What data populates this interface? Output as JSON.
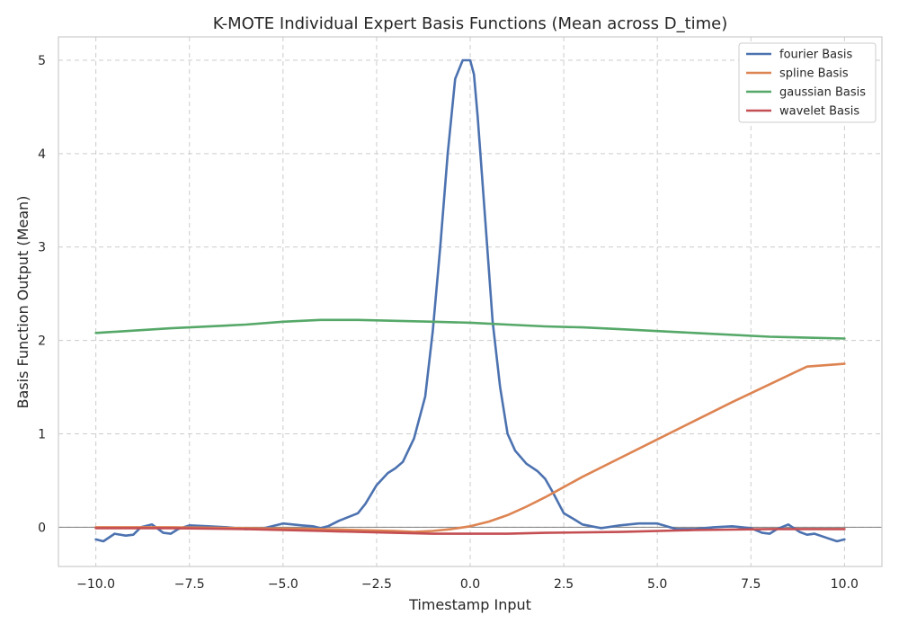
{
  "chart_data": {
    "type": "line",
    "title": "K-MOTE Individual Expert Basis Functions (Mean across D_time)",
    "xlabel": "Timestamp Input",
    "ylabel": "Basis Function Output (Mean)",
    "xlim": [
      -11,
      11
    ],
    "ylim": [
      -0.42,
      5.25
    ],
    "xticks": [
      -10,
      -7.5,
      -5,
      -2.5,
      0,
      2.5,
      5,
      7.5,
      10
    ],
    "xtick_labels": [
      "−10.0",
      "−7.5",
      "−5.0",
      "−2.5",
      "0.0",
      "2.5",
      "5.0",
      "7.5",
      "10.0"
    ],
    "yticks": [
      0,
      1,
      2,
      3,
      4,
      5
    ],
    "ytick_labels": [
      "0",
      "1",
      "2",
      "3",
      "4",
      "5"
    ],
    "grid": true,
    "reference_line_y": 0,
    "legend_position": "top-right",
    "series": [
      {
        "name": "fourier Basis",
        "color": "#4c72b0",
        "x": [
          -10,
          -9.8,
          -9.5,
          -9.2,
          -9,
          -8.8,
          -8.5,
          -8.2,
          -8,
          -7.8,
          -7.5,
          -7,
          -6.5,
          -6,
          -5.5,
          -5,
          -4.5,
          -4.2,
          -4,
          -3.8,
          -3.5,
          -3,
          -2.8,
          -2.5,
          -2.2,
          -2,
          -1.8,
          -1.5,
          -1.2,
          -1,
          -0.8,
          -0.6,
          -0.4,
          -0.2,
          -0.1,
          0,
          0.1,
          0.2,
          0.4,
          0.6,
          0.8,
          1,
          1.2,
          1.5,
          1.8,
          2,
          2.2,
          2.5,
          2.8,
          3,
          3.5,
          4,
          4.5,
          5,
          5.5,
          6,
          6.5,
          7,
          7.5,
          7.8,
          8,
          8.2,
          8.5,
          8.8,
          9,
          9.2,
          9.5,
          9.8,
          10
        ],
        "y": [
          -0.13,
          -0.15,
          -0.07,
          -0.09,
          -0.08,
          0,
          0.03,
          -0.06,
          -0.07,
          -0.02,
          0.02,
          0.01,
          0,
          -0.02,
          -0.01,
          0.04,
          0.02,
          0.01,
          -0.01,
          0.01,
          0.07,
          0.15,
          0.25,
          0.45,
          0.58,
          0.63,
          0.7,
          0.95,
          1.4,
          2.1,
          3.0,
          4.0,
          4.8,
          5.0,
          5.0,
          5.0,
          4.85,
          4.4,
          3.3,
          2.2,
          1.5,
          1.0,
          0.82,
          0.68,
          0.6,
          0.52,
          0.38,
          0.15,
          0.08,
          0.03,
          -0.01,
          0.02,
          0.04,
          0.04,
          -0.02,
          -0.02,
          0,
          0.01,
          -0.01,
          -0.06,
          -0.07,
          -0.02,
          0.03,
          -0.05,
          -0.08,
          -0.07,
          -0.11,
          -0.15,
          -0.13
        ]
      },
      {
        "name": "spline Basis",
        "color": "#dd8452",
        "x": [
          -10,
          -8,
          -6,
          -4,
          -3,
          -2,
          -1.5,
          -1,
          -0.5,
          0,
          0.5,
          1,
          1.5,
          2,
          2.5,
          3,
          4,
          5,
          6,
          7,
          8,
          9,
          10
        ],
        "y": [
          0,
          0,
          -0.01,
          -0.02,
          -0.03,
          -0.04,
          -0.05,
          -0.04,
          -0.02,
          0.01,
          0.06,
          0.13,
          0.22,
          0.32,
          0.43,
          0.54,
          0.74,
          0.94,
          1.14,
          1.34,
          1.53,
          1.72,
          1.75
        ]
      },
      {
        "name": "gaussian Basis",
        "color": "#55a868",
        "x": [
          -10,
          -8,
          -6,
          -5,
          -4,
          -3,
          -2,
          -1,
          0,
          1,
          2,
          3,
          4,
          6,
          8,
          10
        ],
        "y": [
          2.08,
          2.13,
          2.17,
          2.2,
          2.22,
          2.22,
          2.21,
          2.2,
          2.19,
          2.17,
          2.15,
          2.14,
          2.12,
          2.08,
          2.04,
          2.02
        ]
      },
      {
        "name": "wavelet Basis",
        "color": "#c44e52",
        "x": [
          -10,
          -8,
          -6,
          -4,
          -2,
          -1,
          0,
          1,
          2,
          4,
          6,
          8,
          10
        ],
        "y": [
          -0.01,
          -0.01,
          -0.02,
          -0.04,
          -0.06,
          -0.07,
          -0.07,
          -0.07,
          -0.06,
          -0.05,
          -0.03,
          -0.02,
          -0.02
        ]
      }
    ]
  }
}
